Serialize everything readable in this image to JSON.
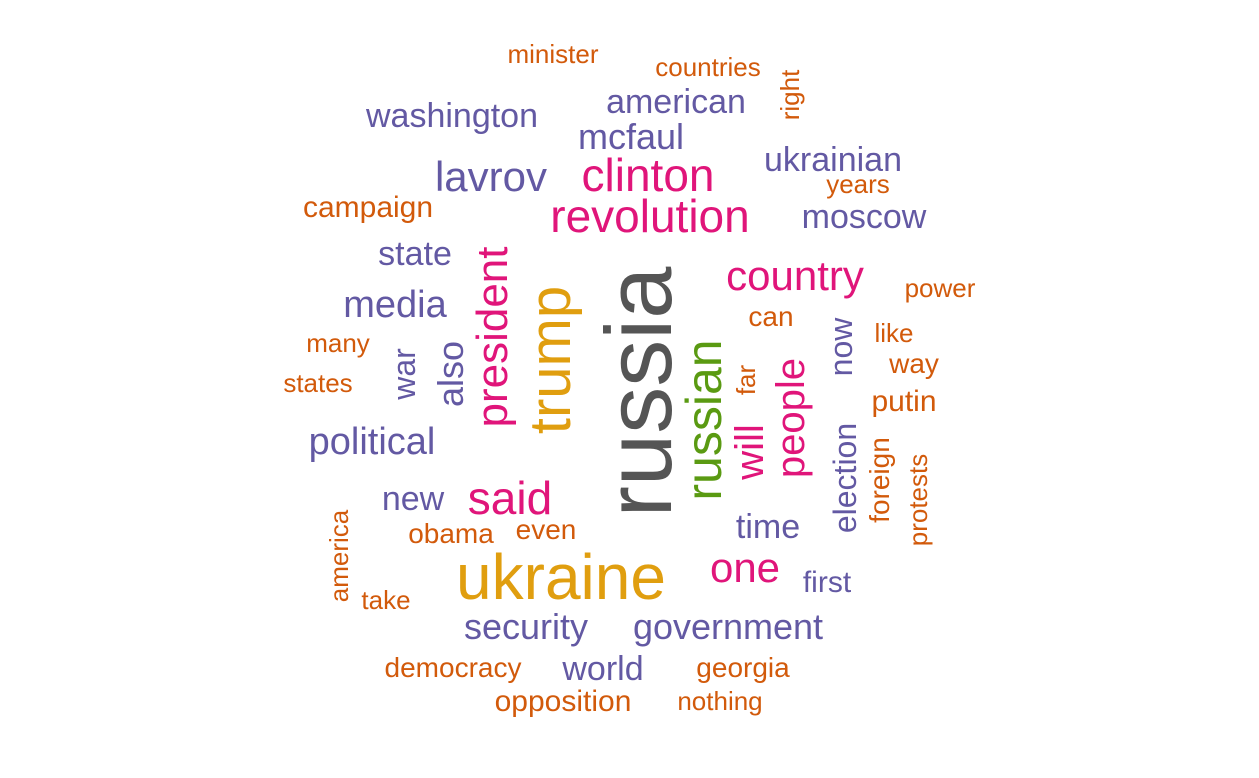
{
  "palette": {
    "gray": "#555555",
    "gold": "#E09E0F",
    "green": "#5A9A12",
    "pink": "#E0157A",
    "purple": "#6359A3",
    "orange": "#D25A0B"
  },
  "words": [
    {
      "text": "russia",
      "color": "gray",
      "weight": 10,
      "vertical": true
    },
    {
      "text": "ukraine",
      "color": "gold",
      "weight": 8
    },
    {
      "text": "trump",
      "color": "gold",
      "weight": 7,
      "vertical": true
    },
    {
      "text": "russian",
      "color": "green",
      "weight": 6,
      "vertical": true
    },
    {
      "text": "president",
      "color": "pink",
      "weight": 5,
      "vertical": true
    },
    {
      "text": "revolution",
      "color": "pink",
      "weight": 5
    },
    {
      "text": "clinton",
      "color": "pink",
      "weight": 5
    },
    {
      "text": "said",
      "color": "pink",
      "weight": 5
    },
    {
      "text": "country",
      "color": "pink",
      "weight": 4
    },
    {
      "text": "people",
      "color": "pink",
      "weight": 4,
      "vertical": true
    },
    {
      "text": "will",
      "color": "pink",
      "weight": 4,
      "vertical": true
    },
    {
      "text": "one",
      "color": "pink",
      "weight": 4
    },
    {
      "text": "lavrov",
      "color": "purple",
      "weight": 4
    },
    {
      "text": "political",
      "color": "purple",
      "weight": 4
    },
    {
      "text": "media",
      "color": "purple",
      "weight": 4
    },
    {
      "text": "security",
      "color": "purple",
      "weight": 3
    },
    {
      "text": "government",
      "color": "purple",
      "weight": 3
    },
    {
      "text": "also",
      "color": "purple",
      "weight": 3,
      "vertical": true
    },
    {
      "text": "mcfaul",
      "color": "purple",
      "weight": 3
    },
    {
      "text": "american",
      "color": "purple",
      "weight": 3
    },
    {
      "text": "washington",
      "color": "purple",
      "weight": 3
    },
    {
      "text": "ukrainian",
      "color": "purple",
      "weight": 3
    },
    {
      "text": "moscow",
      "color": "purple",
      "weight": 3
    },
    {
      "text": "state",
      "color": "purple",
      "weight": 3
    },
    {
      "text": "new",
      "color": "purple",
      "weight": 3
    },
    {
      "text": "time",
      "color": "purple",
      "weight": 3
    },
    {
      "text": "world",
      "color": "purple",
      "weight": 3
    },
    {
      "text": "election",
      "color": "purple",
      "weight": 3,
      "vertical": true
    },
    {
      "text": "now",
      "color": "purple",
      "weight": 3,
      "vertical": true
    },
    {
      "text": "war",
      "color": "purple",
      "weight": 3,
      "vertical": true
    },
    {
      "text": "first",
      "color": "purple",
      "weight": 2
    },
    {
      "text": "putin",
      "color": "orange",
      "weight": 2
    },
    {
      "text": "campaign",
      "color": "orange",
      "weight": 2
    },
    {
      "text": "democracy",
      "color": "orange",
      "weight": 2
    },
    {
      "text": "opposition",
      "color": "orange",
      "weight": 2
    },
    {
      "text": "georgia",
      "color": "orange",
      "weight": 2
    },
    {
      "text": "obama",
      "color": "orange",
      "weight": 2
    },
    {
      "text": "even",
      "color": "orange",
      "weight": 2
    },
    {
      "text": "can",
      "color": "orange",
      "weight": 2
    },
    {
      "text": "foreign",
      "color": "orange",
      "weight": 2,
      "vertical": true
    },
    {
      "text": "way",
      "color": "orange",
      "weight": 2
    },
    {
      "text": "many",
      "color": "orange",
      "weight": 1
    },
    {
      "text": "states",
      "color": "orange",
      "weight": 1
    },
    {
      "text": "like",
      "color": "orange",
      "weight": 1
    },
    {
      "text": "power",
      "color": "orange",
      "weight": 1
    },
    {
      "text": "years",
      "color": "orange",
      "weight": 1
    },
    {
      "text": "countries",
      "color": "orange",
      "weight": 1
    },
    {
      "text": "minister",
      "color": "orange",
      "weight": 1
    },
    {
      "text": "nothing",
      "color": "orange",
      "weight": 1
    },
    {
      "text": "take",
      "color": "orange",
      "weight": 1
    },
    {
      "text": "america",
      "color": "orange",
      "weight": 1,
      "vertical": true
    },
    {
      "text": "protests",
      "color": "orange",
      "weight": 1,
      "vertical": true
    },
    {
      "text": "far",
      "color": "orange",
      "weight": 1,
      "vertical": true
    },
    {
      "text": "right",
      "color": "orange",
      "weight": 1,
      "vertical": true
    }
  ]
}
